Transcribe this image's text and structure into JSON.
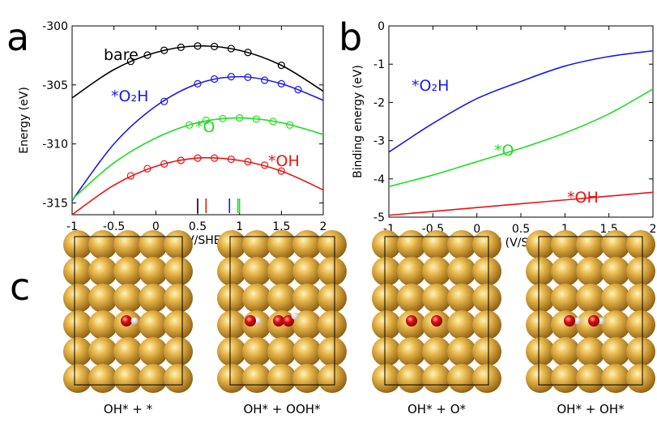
{
  "panels": {
    "a": "a",
    "b": "b",
    "c": "c"
  },
  "chart_data": [
    {
      "type": "line",
      "x_label": "U (V/SHE)",
      "y_label": "Energy (eV)",
      "x": [
        -1,
        -0.5,
        0,
        0.5,
        1,
        1.5,
        2
      ],
      "xlim": [
        -1,
        2
      ],
      "xticks": [
        -1,
        -0.5,
        0,
        0.5,
        1,
        1.5,
        2
      ],
      "ylim": [
        -316,
        -300
      ],
      "yticks": [
        -315,
        -310,
        -305,
        -300
      ],
      "series": [
        {
          "name": "bare",
          "color": "#000000",
          "values": [
            -306.1,
            -303.7,
            -302.25,
            -301.7,
            -302.07,
            -303.34,
            -305.53
          ],
          "markers": {
            "x": [
              -0.3,
              -0.1,
              0.1,
              0.3,
              0.5,
              0.7,
              0.9,
              1.1,
              1.5
            ],
            "values": [
              -303.0,
              -302.47,
              -302.07,
              -301.81,
              -301.7,
              -301.74,
              -301.92,
              -302.25,
              -303.34
            ]
          }
        },
        {
          "name": "*O₂H",
          "color": "#1a1ae6",
          "values": [
            -314.8,
            -310.0,
            -306.8,
            -304.9,
            -304.3,
            -304.9,
            -306.3
          ],
          "markers": {
            "x": [
              0.1,
              0.5,
              0.7,
              0.9,
              1.1,
              1.3,
              1.5,
              1.7
            ],
            "values": [
              -306.4,
              -304.9,
              -304.5,
              -304.3,
              -304.35,
              -304.6,
              -304.9,
              -305.4
            ]
          }
        },
        {
          "name": "*O",
          "color": "#22dd22",
          "values": [
            -314.7,
            -311.6,
            -309.5,
            -308.2,
            -307.8,
            -308.2,
            -309.2
          ],
          "markers": {
            "x": [
              0.4,
              0.6,
              0.8,
              1.0,
              1.2,
              1.4,
              1.6
            ],
            "values": [
              -308.4,
              -308.0,
              -307.85,
              -307.8,
              -307.9,
              -308.1,
              -308.4
            ]
          }
        },
        {
          "name": "*OH",
          "color": "#e81414",
          "values": [
            -316,
            -313.5,
            -311.9,
            -311.2,
            -311.4,
            -312.3,
            -313.9
          ],
          "markers": {
            "x": [
              -0.3,
              -0.1,
              0.1,
              0.3,
              0.5,
              0.7,
              0.9,
              1.1,
              1.3,
              1.5
            ],
            "values": [
              -312.7,
              -312.1,
              -311.7,
              -311.4,
              -311.2,
              -311.2,
              -311.3,
              -311.5,
              -311.8,
              -312.3
            ]
          }
        }
      ],
      "potentials": [
        {
          "x": 0.5,
          "color": "#000000"
        },
        {
          "x": 0.6,
          "color": "#e81414"
        },
        {
          "x": 0.88,
          "color": "#1a1ae6"
        },
        {
          "x": 0.98,
          "color": "#22dd22"
        },
        {
          "x": 1.0,
          "color": "#22dd22"
        }
      ]
    },
    {
      "type": "line",
      "x_label": "U (V/SHE)",
      "y_label": "Binding energy (eV)",
      "x": [
        -1,
        -0.5,
        0,
        0.5,
        1,
        1.5,
        2
      ],
      "xlim": [
        -1,
        2
      ],
      "xticks": [
        -1,
        -0.5,
        0,
        0.5,
        1,
        1.5,
        2
      ],
      "ylim": [
        -5,
        0
      ],
      "yticks": [
        -5,
        -4,
        -3,
        -2,
        -1,
        0
      ],
      "series": [
        {
          "name": "*O₂H",
          "color": "#1a1ae6",
          "values": [
            -3.3,
            -2.55,
            -1.9,
            -1.45,
            -1.05,
            -0.8,
            -0.65
          ]
        },
        {
          "name": "*O",
          "color": "#22dd22",
          "values": [
            -4.2,
            -3.9,
            -3.55,
            -3.2,
            -2.8,
            -2.3,
            -1.65
          ]
        },
        {
          "name": "*OH",
          "color": "#e81414",
          "values": [
            -4.95,
            -4.85,
            -4.75,
            -4.65,
            -4.55,
            -4.45,
            -4.35
          ]
        }
      ]
    }
  ],
  "structures": [
    "OH* + *",
    "OH* + OOH*",
    "OH* + O*",
    "OH* + OH*"
  ]
}
